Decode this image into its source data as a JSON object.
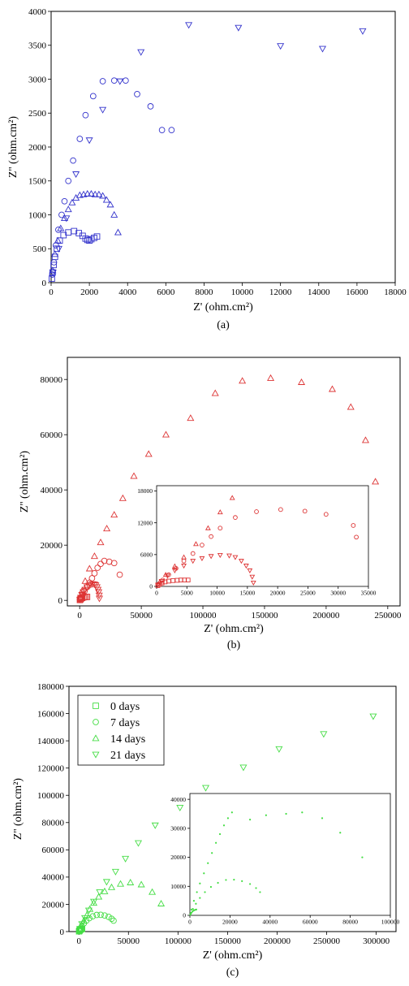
{
  "chart_data": [
    {
      "type": "scatter",
      "panel_label": "(a)",
      "xlabel": "Z' (ohm.cm²)",
      "ylabel": "Z'' (ohm.cm²)",
      "xlim": [
        0,
        18000
      ],
      "ylim": [
        0,
        4000
      ],
      "xticks": [
        0,
        2000,
        4000,
        6000,
        8000,
        10000,
        12000,
        14000,
        16000,
        18000
      ],
      "yticks": [
        0,
        500,
        1000,
        1500,
        2000,
        2500,
        3000,
        3500,
        4000
      ],
      "xtick_labels": [
        "0",
        "2000",
        "4000",
        "6000",
        "8000",
        "10000",
        "12000",
        "14000",
        "16000",
        "18000"
      ],
      "ytick_labels": [
        "0",
        "500",
        "1000",
        "1500",
        "2000",
        "2500",
        "3000",
        "3500",
        "4000"
      ],
      "color": "#3333cc",
      "series": [
        {
          "marker": "square",
          "x": [
            40,
            80,
            130,
            200,
            300,
            450,
            650,
            900,
            1200,
            1450,
            1650,
            1800,
            1900,
            2000,
            2100,
            2250,
            2400
          ],
          "y": [
            60,
            150,
            260,
            380,
            500,
            620,
            700,
            740,
            760,
            730,
            690,
            650,
            630,
            620,
            640,
            660,
            680
          ]
        },
        {
          "marker": "circle",
          "x": [
            60,
            150,
            250,
            380,
            550,
            700,
            900,
            1150,
            1500,
            1800,
            2200,
            2700,
            3300,
            3900,
            4500,
            5200,
            5800,
            6300
          ],
          "y": [
            120,
            300,
            550,
            780,
            1000,
            1200,
            1500,
            1800,
            2120,
            2470,
            2750,
            2970,
            2980,
            2980,
            2780,
            2600,
            2250,
            2250
          ]
        },
        {
          "marker": "triangle-up",
          "x": [
            80,
            200,
            350,
            500,
            700,
            900,
            1100,
            1300,
            1500,
            1700,
            1900,
            2100,
            2300,
            2500,
            2700,
            2900,
            3100,
            3300,
            3500
          ],
          "y": [
            180,
            420,
            620,
            800,
            950,
            1080,
            1180,
            1250,
            1290,
            1300,
            1310,
            1310,
            1300,
            1300,
            1280,
            1220,
            1150,
            1000,
            740
          ]
        },
        {
          "marker": "triangle-down",
          "x": [
            100,
            400,
            800,
            1300,
            2000,
            2700,
            3600,
            4700,
            7200,
            9800,
            12000,
            14200,
            16300
          ],
          "y": [
            150,
            500,
            950,
            1600,
            2100,
            2550,
            2970,
            3400,
            3800,
            3760,
            3490,
            3450,
            3710
          ]
        }
      ],
      "insets": []
    },
    {
      "type": "scatter",
      "panel_label": "(b)",
      "xlabel": "Z' (ohm.cm²)",
      "ylabel": "Z'' (ohm.cm²)",
      "xlim": [
        -10000,
        260000
      ],
      "ylim": [
        -2000,
        88000
      ],
      "xticks": [
        0,
        50000,
        100000,
        150000,
        200000,
        250000
      ],
      "yticks": [
        0,
        20000,
        40000,
        60000,
        80000
      ],
      "xtick_labels": [
        "0",
        "50000",
        "100000",
        "150000",
        "200000",
        "250000"
      ],
      "ytick_labels": [
        "0",
        "20000",
        "40000",
        "60000",
        "80000"
      ],
      "color": "#dd3333",
      "series": [
        {
          "marker": "square",
          "x": [
            200,
            600,
            1200,
            2000,
            3000,
            4000,
            5000,
            6000
          ],
          "y": [
            150,
            400,
            700,
            900,
            1100,
            1200,
            1250,
            1250
          ]
        },
        {
          "marker": "circle",
          "x": [
            300,
            1200,
            2500,
            4000,
            6000,
            8000,
            10000,
            12000,
            14500,
            17000,
            20000,
            24000,
            28000,
            32500
          ],
          "y": [
            400,
            1200,
            2200,
            3400,
            4800,
            6400,
            8000,
            9800,
            11800,
            13200,
            14300,
            14000,
            13500,
            9300
          ]
        },
        {
          "marker": "triangle-up",
          "x": [
            500,
            2000,
            4500,
            8000,
            12000,
            17000,
            22000,
            28000,
            35000,
            44000,
            56000,
            70000,
            90000,
            110000,
            132000,
            155000,
            180000,
            205000,
            220000,
            232000,
            240000
          ],
          "y": [
            1000,
            3500,
            7000,
            11500,
            16000,
            21000,
            26000,
            31000,
            37000,
            45000,
            53000,
            60000,
            66000,
            75000,
            79500,
            80500,
            79000,
            76500,
            70000,
            58000,
            43000
          ]
        },
        {
          "marker": "triangle-down",
          "x": [
            200,
            800,
            1800,
            3000,
            4500,
            6000,
            7500,
            9000,
            10500,
            12000,
            13000,
            14000,
            14800,
            15400,
            15800,
            16000
          ],
          "y": [
            300,
            1000,
            2000,
            3000,
            3900,
            4800,
            5300,
            5700,
            5900,
            5800,
            5500,
            4800,
            3900,
            3000,
            1800,
            700
          ]
        }
      ],
      "insets": [
        {
          "xlim": [
            0,
            35000
          ],
          "ylim": [
            0,
            19000
          ],
          "xticks": [
            0,
            5000,
            10000,
            15000,
            20000,
            25000,
            30000,
            35000
          ],
          "yticks": [
            0,
            6000,
            12000,
            18000
          ],
          "xtick_labels": [
            "0",
            "5000",
            "10000",
            "15000",
            "20000",
            "25000",
            "30000",
            "35000"
          ],
          "ytick_labels": [
            "0",
            "6000",
            "12000",
            "18000"
          ],
          "series": [
            {
              "marker": "square",
              "x": [
                200,
                500,
                900,
                1400,
                2000,
                2700,
                3400,
                4000,
                4600,
                5200
              ],
              "y": [
                150,
                400,
                650,
                850,
                1000,
                1100,
                1150,
                1200,
                1200,
                1200
              ]
            },
            {
              "marker": "circle",
              "x": [
                300,
                1000,
                2000,
                3200,
                4500,
                6000,
                7500,
                9000,
                10500,
                13000,
                16500,
                20500,
                24500,
                28000,
                32500,
                33000
              ],
              "y": [
                400,
                1200,
                2200,
                3400,
                4800,
                6200,
                7800,
                9400,
                11000,
                13000,
                14100,
                14500,
                14200,
                13600,
                11500,
                9300
              ]
            },
            {
              "marker": "triangle-up",
              "x": [
                500,
                1500,
                3000,
                4500,
                6500,
                8500,
                10500,
                12500
              ],
              "y": [
                800,
                2200,
                3800,
                5500,
                8000,
                11000,
                14000,
                16700
              ]
            },
            {
              "marker": "triangle-down",
              "x": [
                200,
                800,
                1800,
                3000,
                4500,
                6000,
                7500,
                9000,
                10500,
                12000,
                13000,
                14000,
                14800,
                15400,
                15800,
                16000
              ],
              "y": [
                300,
                1000,
                2000,
                3000,
                3900,
                4800,
                5300,
                5700,
                5900,
                5800,
                5500,
                4800,
                3900,
                3000,
                1800,
                700
              ]
            }
          ]
        }
      ]
    },
    {
      "type": "scatter",
      "panel_label": "(c)",
      "xlabel": "Z' (ohm.cm²)",
      "ylabel": "Z'' (ohm.cm²)",
      "xlim": [
        -10000,
        320000
      ],
      "ylim": [
        0,
        180000
      ],
      "xticks": [
        0,
        50000,
        100000,
        150000,
        200000,
        250000,
        300000
      ],
      "yticks": [
        0,
        20000,
        40000,
        60000,
        80000,
        100000,
        120000,
        140000,
        160000,
        180000
      ],
      "xtick_labels": [
        "0",
        "50000",
        "100000",
        "150000",
        "200000",
        "250000",
        "300000"
      ],
      "ytick_labels": [
        "0",
        "20000",
        "40000",
        "60000",
        "80000",
        "100000",
        "120000",
        "140000",
        "160000",
        "180000"
      ],
      "color": "#44dd44",
      "legend": [
        "0 days",
        "7 days",
        "14 days",
        "21 days"
      ],
      "legend_position": "top-left",
      "series": [
        {
          "name": "0 days",
          "marker": "square",
          "x": [
            200,
            500,
            900,
            1400,
            2000,
            2600,
            3200
          ],
          "y": [
            200,
            600,
            1000,
            1400,
            1700,
            1900,
            2000
          ]
        },
        {
          "name": "7 days",
          "marker": "circle",
          "x": [
            500,
            1500,
            3000,
            5000,
            7500,
            10500,
            14000,
            18000,
            22000,
            26000,
            30000,
            33000,
            35000
          ],
          "y": [
            800,
            2200,
            4000,
            6000,
            8000,
            9800,
            11200,
            12200,
            12300,
            11800,
            10800,
            9400,
            8000
          ]
        },
        {
          "name": "14 days",
          "marker": "triangle-up",
          "x": [
            800,
            2500,
            5000,
            8000,
            11000,
            15000,
            20000,
            26000,
            33000,
            42000,
            52000,
            63000,
            74000,
            83000
          ],
          "y": [
            1500,
            4500,
            8000,
            12000,
            16500,
            21000,
            25500,
            29500,
            32500,
            35000,
            36000,
            34500,
            29000,
            20500
          ]
        },
        {
          "name": "21 days",
          "marker": "triangle-down",
          "x": [
            1000,
            3000,
            6000,
            10000,
            15000,
            21000,
            28000,
            37000,
            47000,
            60000,
            77000,
            102000,
            128000,
            166000,
            202000,
            247000,
            297000
          ],
          "y": [
            2000,
            5500,
            10000,
            15500,
            22000,
            29000,
            36500,
            44000,
            53500,
            65000,
            78000,
            91000,
            105500,
            120500,
            134000,
            145000,
            158000
          ]
        }
      ],
      "insets": [
        {
          "xlim": [
            0,
            100000
          ],
          "ylim": [
            0,
            42000
          ],
          "xticks": [
            0,
            20000,
            40000,
            60000,
            80000,
            100000
          ],
          "yticks": [
            0,
            10000,
            20000,
            30000,
            40000
          ],
          "xtick_labels": [
            "0",
            "20000",
            "40000",
            "60000",
            "80000",
            "100000"
          ],
          "ytick_labels": [
            "0",
            "10000",
            "20000",
            "30000",
            "40000"
          ],
          "series": [
            {
              "marker": "dot",
              "x": [
                200,
                500,
                900,
                1400,
                2000,
                2600,
                3200
              ],
              "y": [
                200,
                600,
                1000,
                1400,
                1700,
                1900,
                2000
              ]
            },
            {
              "marker": "dot",
              "x": [
                500,
                1500,
                3000,
                5000,
                7500,
                10500,
                14000,
                18000,
                22000,
                26000,
                30000,
                33000,
                35000
              ],
              "y": [
                800,
                2200,
                4000,
                6000,
                8000,
                9800,
                11200,
                12200,
                12300,
                11800,
                10800,
                9400,
                8000
              ]
            },
            {
              "marker": "dot",
              "x": [
                800,
                2000,
                3500,
                5000,
                7000,
                9000,
                11000,
                13000,
                15000,
                17000,
                19000,
                21000
              ],
              "y": [
                2000,
                5000,
                8000,
                11000,
                14500,
                18000,
                21500,
                25000,
                28000,
                31000,
                33500,
                35500
              ]
            },
            {
              "marker": "dot",
              "x": [
                30000,
                38000,
                48000,
                56000,
                66000,
                75000,
                86000
              ],
              "y": [
                33000,
                34500,
                35000,
                35500,
                33500,
                28500,
                20000
              ]
            }
          ]
        }
      ]
    }
  ]
}
